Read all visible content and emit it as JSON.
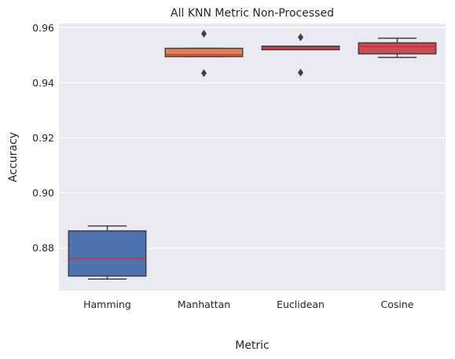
{
  "chart_data": {
    "type": "box",
    "title": "All KNN Metric Non-Processed",
    "xlabel": "Metric",
    "ylabel": "Accuracy",
    "categories": [
      "Hamming",
      "Manhattan",
      "Euclidean",
      "Cosine"
    ],
    "ylim": [
      0.8645,
      0.9615
    ],
    "yticks": [
      0.88,
      0.9,
      0.92,
      0.94,
      0.96
    ],
    "ytick_labels": [
      "0.88",
      "0.90",
      "0.92",
      "0.94",
      "0.96"
    ],
    "grid": true,
    "background": "#eaeaf2",
    "grid_color": "#ffffff",
    "median_color": "#e0263a",
    "edge_color": "#3f3f3f",
    "boxes": [
      {
        "category": "Hamming",
        "whisker_low": 0.8687,
        "q1": 0.8698,
        "median": 0.8762,
        "q3": 0.8862,
        "whisker_high": 0.888,
        "outliers": [],
        "color": "#4c72b0"
      },
      {
        "category": "Manhattan",
        "whisker_low": 0.9495,
        "q1": 0.9495,
        "median": 0.9502,
        "q3": 0.9525,
        "whisker_high": 0.9525,
        "outliers": [
          0.9435,
          0.9578
        ],
        "color": "#dd8452"
      },
      {
        "category": "Euclidean",
        "whisker_low": 0.952,
        "q1": 0.952,
        "median": 0.9527,
        "q3": 0.9533,
        "whisker_high": 0.9533,
        "outliers": [
          0.9437,
          0.9565
        ],
        "color": "#c44e52"
      },
      {
        "category": "Cosine",
        "whisker_low": 0.9492,
        "q1": 0.9505,
        "median": 0.9532,
        "q3": 0.9545,
        "whisker_high": 0.9562,
        "outliers": [],
        "color": "#c44e52"
      }
    ]
  }
}
